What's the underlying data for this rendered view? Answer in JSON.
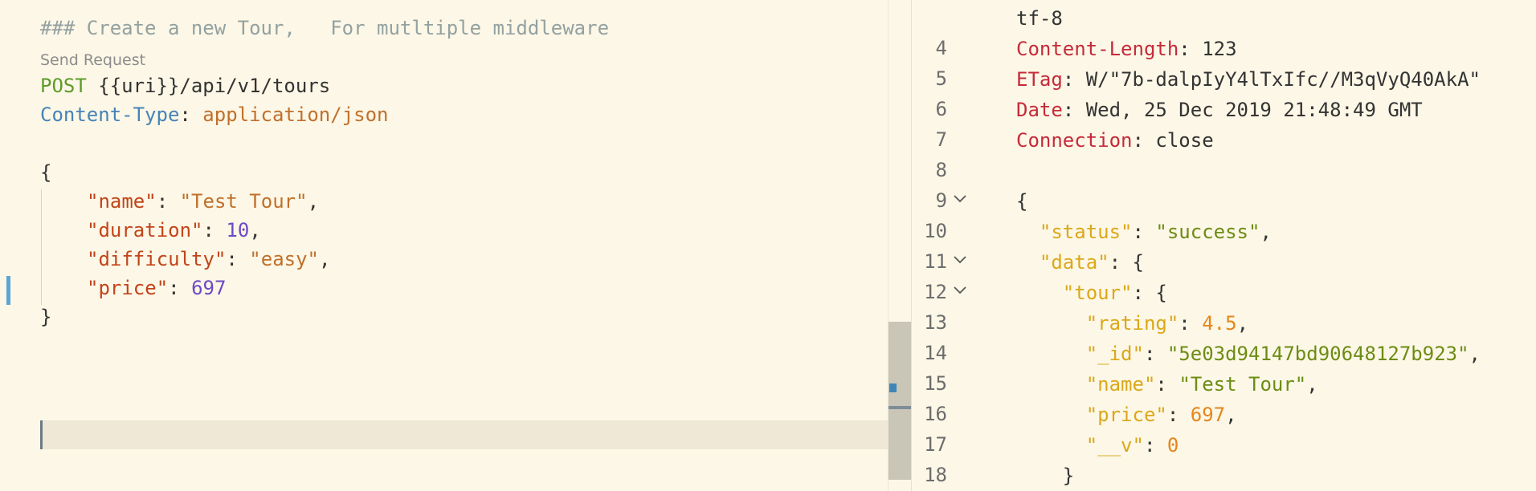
{
  "request": {
    "comment": "### Create a new Tour,   For mutltiple middleware",
    "codelens": "Send Request",
    "method": "POST",
    "url": " {{uri}}/api/v1/tours",
    "header_name": "Content-Type",
    "header_sep": ": ",
    "header_value": "application/json",
    "open_brace": "{",
    "close_brace": "}",
    "body": [
      {
        "key": "\"name\"",
        "sep": ": ",
        "value": "\"Test Tour\"",
        "value_type": "string",
        "trail": ","
      },
      {
        "key": "\"duration\"",
        "sep": ": ",
        "value": "10",
        "value_type": "number",
        "trail": ","
      },
      {
        "key": "\"difficulty\"",
        "sep": ": ",
        "value": "\"easy\"",
        "value_type": "string",
        "trail": ","
      },
      {
        "key": "\"price\"",
        "sep": ": ",
        "value": "697",
        "value_type": "number",
        "trail": ""
      }
    ]
  },
  "response": {
    "lines": [
      {
        "num": "",
        "fold": false,
        "parts": [
          {
            "t": "tf-8",
            "c": "plain"
          }
        ]
      },
      {
        "num": "4",
        "fold": false,
        "parts": [
          {
            "t": "Content-Length",
            "c": "hdr"
          },
          {
            "t": ": 123",
            "c": "plain"
          }
        ]
      },
      {
        "num": "5",
        "fold": false,
        "parts": [
          {
            "t": "ETag",
            "c": "hdr"
          },
          {
            "t": ": W/\"7b-dalpIyY4lTxIfc//M3qVyQ40AkA\"",
            "c": "plain"
          }
        ]
      },
      {
        "num": "6",
        "fold": false,
        "parts": [
          {
            "t": "Date",
            "c": "hdr"
          },
          {
            "t": ": Wed, 25 Dec 2019 21:48:49 GMT",
            "c": "plain"
          }
        ]
      },
      {
        "num": "7",
        "fold": false,
        "parts": [
          {
            "t": "Connection",
            "c": "hdr"
          },
          {
            "t": ": close",
            "c": "plain"
          }
        ]
      },
      {
        "num": "8",
        "fold": false,
        "parts": []
      },
      {
        "num": "9",
        "fold": true,
        "parts": [
          {
            "t": "{",
            "c": "plain"
          }
        ]
      },
      {
        "num": "10",
        "fold": false,
        "parts": [
          {
            "t": "  ",
            "c": "plain"
          },
          {
            "t": "\"status\"",
            "c": "key"
          },
          {
            "t": ": ",
            "c": "plain"
          },
          {
            "t": "\"success\"",
            "c": "str"
          },
          {
            "t": ",",
            "c": "plain"
          }
        ]
      },
      {
        "num": "11",
        "fold": true,
        "parts": [
          {
            "t": "  ",
            "c": "plain"
          },
          {
            "t": "\"data\"",
            "c": "key"
          },
          {
            "t": ": {",
            "c": "plain"
          }
        ]
      },
      {
        "num": "12",
        "fold": true,
        "parts": [
          {
            "t": "    ",
            "c": "plain"
          },
          {
            "t": "\"tour\"",
            "c": "key"
          },
          {
            "t": ": {",
            "c": "plain"
          }
        ]
      },
      {
        "num": "13",
        "fold": false,
        "parts": [
          {
            "t": "      ",
            "c": "plain"
          },
          {
            "t": "\"rating\"",
            "c": "key"
          },
          {
            "t": ": ",
            "c": "plain"
          },
          {
            "t": "4.5",
            "c": "num"
          },
          {
            "t": ",",
            "c": "plain"
          }
        ]
      },
      {
        "num": "14",
        "fold": false,
        "parts": [
          {
            "t": "      ",
            "c": "plain"
          },
          {
            "t": "\"_id\"",
            "c": "key"
          },
          {
            "t": ": ",
            "c": "plain"
          },
          {
            "t": "\"5e03d94147bd90648127b923\"",
            "c": "str"
          },
          {
            "t": ",",
            "c": "plain"
          }
        ]
      },
      {
        "num": "15",
        "fold": false,
        "parts": [
          {
            "t": "      ",
            "c": "plain"
          },
          {
            "t": "\"name\"",
            "c": "key"
          },
          {
            "t": ": ",
            "c": "plain"
          },
          {
            "t": "\"Test Tour\"",
            "c": "str"
          },
          {
            "t": ",",
            "c": "plain"
          }
        ]
      },
      {
        "num": "16",
        "fold": false,
        "parts": [
          {
            "t": "      ",
            "c": "plain"
          },
          {
            "t": "\"price\"",
            "c": "key"
          },
          {
            "t": ": ",
            "c": "plain"
          },
          {
            "t": "697",
            "c": "num"
          },
          {
            "t": ",",
            "c": "plain"
          }
        ]
      },
      {
        "num": "17",
        "fold": false,
        "parts": [
          {
            "t": "      ",
            "c": "plain"
          },
          {
            "t": "\"__v\"",
            "c": "key"
          },
          {
            "t": ": ",
            "c": "plain"
          },
          {
            "t": "0",
            "c": "num"
          }
        ]
      },
      {
        "num": "18",
        "fold": false,
        "parts": [
          {
            "t": "    }",
            "c": "plain"
          }
        ]
      }
    ]
  },
  "icons": {
    "fold": "chevron-down-icon"
  },
  "colors": {
    "background": "#fcf7e6",
    "header_name": "#c62a3a",
    "json_key": "#dba81a",
    "json_string": "#6d8c14",
    "json_number": "#e5861a",
    "request_key": "#c2441a",
    "request_number": "#6f48c8",
    "method": "#5f9b2a",
    "request_header": "#4583b8"
  }
}
